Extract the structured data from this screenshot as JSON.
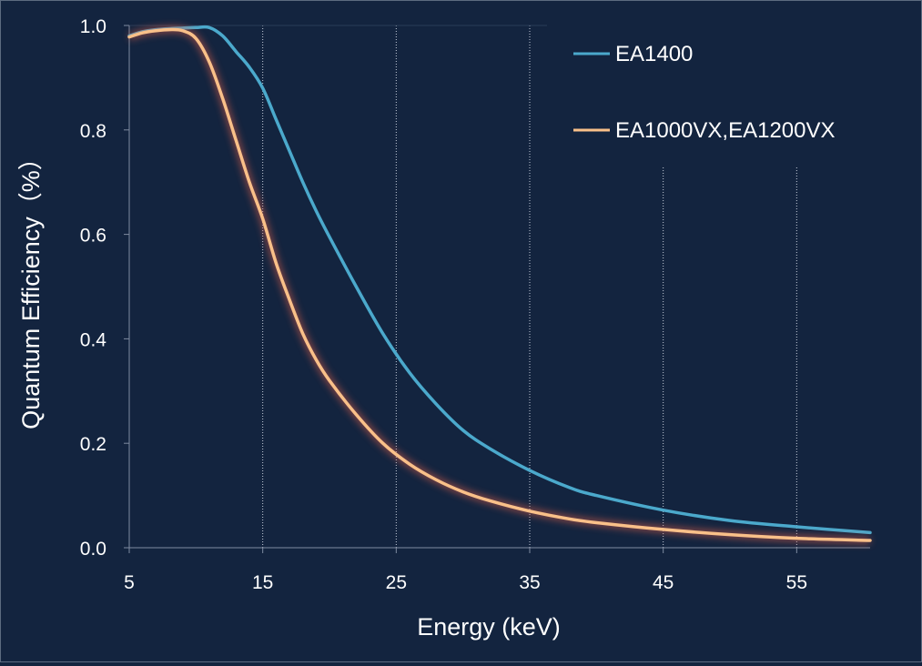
{
  "chart_data": {
    "type": "line",
    "title": "",
    "xlabel": "Energy   (keV)",
    "ylabel": "Quantum Efficiency（%）",
    "xlim": [
      5,
      60.5
    ],
    "ylim": [
      0,
      1.0
    ],
    "x_ticks": [
      5,
      15,
      25,
      35,
      45,
      55
    ],
    "y_ticks": [
      0.0,
      0.2,
      0.4,
      0.6,
      0.8,
      1.0
    ],
    "x_tick_labels": [
      "5",
      "15",
      "25",
      "35",
      "45",
      "55"
    ],
    "y_tick_labels": [
      "0.0",
      "0.2",
      "0.4",
      "0.6",
      "0.8",
      "1.0"
    ],
    "grid": "vertical dotted",
    "legend_position": "top-right",
    "series": [
      {
        "name": "EA1400",
        "color": "#4ba9cc",
        "x": [
          5,
          6,
          7,
          8,
          9,
          10,
          11,
          12,
          13,
          14,
          15,
          16,
          17,
          18,
          19,
          20,
          22,
          24,
          26,
          28,
          30,
          32,
          35,
          38,
          40,
          45,
          50,
          55,
          60.5
        ],
        "y": [
          0.98,
          0.988,
          0.992,
          0.994,
          0.995,
          0.996,
          0.996,
          0.98,
          0.95,
          0.92,
          0.88,
          0.82,
          0.76,
          0.7,
          0.645,
          0.595,
          0.5,
          0.41,
          0.335,
          0.275,
          0.225,
          0.19,
          0.148,
          0.115,
          0.1,
          0.072,
          0.052,
          0.04,
          0.029
        ]
      },
      {
        "name": "EA1000VX,EA1200VX",
        "color": "#f9c089",
        "x": [
          5,
          6,
          7,
          8,
          9,
          10,
          11,
          12,
          13,
          14,
          15,
          16,
          17,
          18,
          19,
          20,
          22,
          24,
          26,
          28,
          30,
          32,
          35,
          38,
          40,
          45,
          50,
          55,
          60.5
        ],
        "y": [
          0.978,
          0.986,
          0.99,
          0.992,
          0.99,
          0.975,
          0.93,
          0.86,
          0.78,
          0.7,
          0.63,
          0.545,
          0.475,
          0.41,
          0.36,
          0.32,
          0.255,
          0.2,
          0.16,
          0.13,
          0.107,
          0.09,
          0.07,
          0.055,
          0.048,
          0.035,
          0.025,
          0.018,
          0.014
        ]
      }
    ]
  }
}
